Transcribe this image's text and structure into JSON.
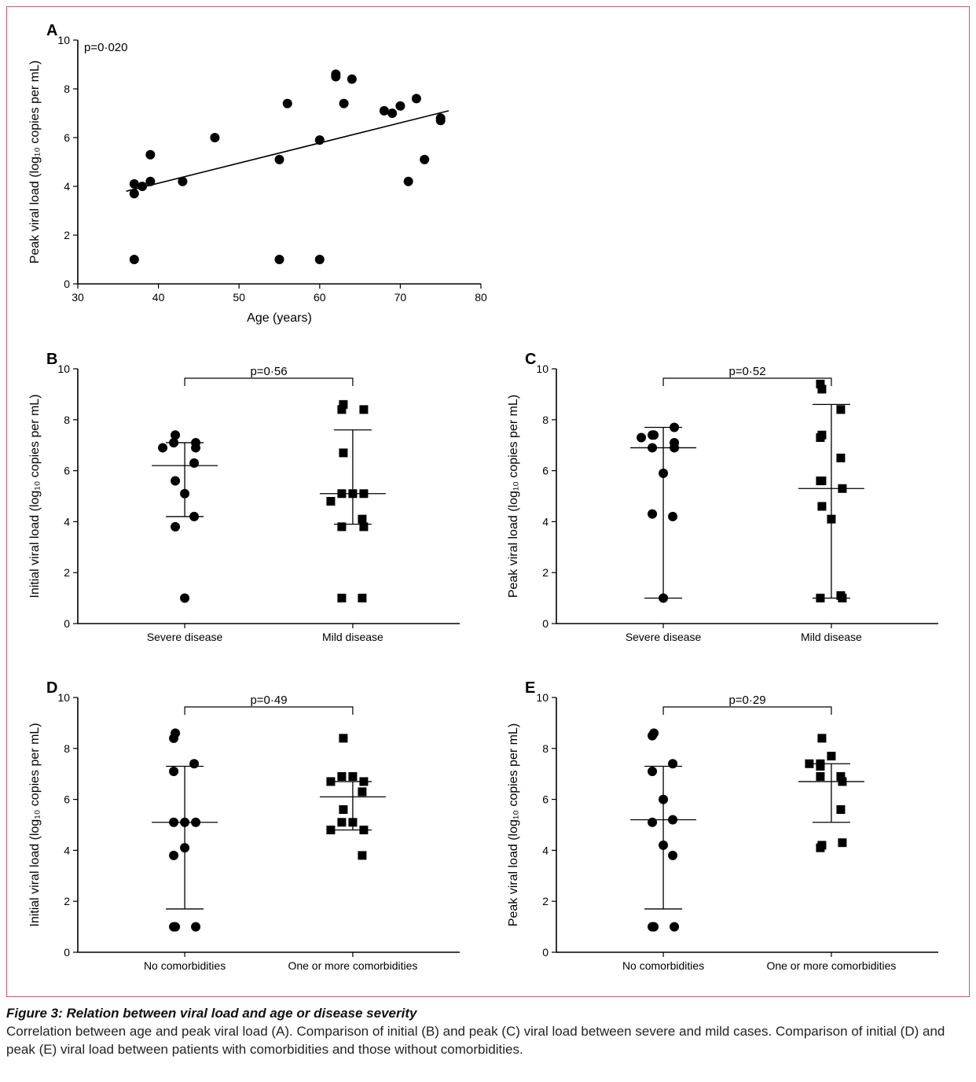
{
  "figure": {
    "caption_title": "Figure 3: Relation between viral load and age or disease severity",
    "caption_body": "Correlation between age and peak viral load (A). Comparison of initial (B) and peak (C) viral load between severe and mild cases. Comparison of initial (D) and peak (E) viral load between patients with comorbidities and those without comorbidities.",
    "border_color": "#d94f70",
    "background_color": "#ffffff",
    "marker_color": "#000000",
    "axis_color": "#000000",
    "label_fontsize": 16,
    "tick_fontsize": 14,
    "panel_letter_fontsize": 20,
    "marker_radius": 6,
    "square_size": 11
  },
  "panelA": {
    "letter": "A",
    "type": "scatter",
    "pvalue_label": "p=0·020",
    "xlabel": "Age (years)",
    "ylabel": "Peak viral load (log₁₀ copies per mL)",
    "xlim": [
      30,
      80
    ],
    "xtick_step": 10,
    "ylim": [
      0,
      10
    ],
    "ytick_step": 2,
    "points": [
      [
        37,
        1.0
      ],
      [
        37,
        4.1
      ],
      [
        37,
        3.7
      ],
      [
        38,
        4.0
      ],
      [
        39,
        4.2
      ],
      [
        39,
        5.3
      ],
      [
        43,
        4.2
      ],
      [
        47,
        6.0
      ],
      [
        55,
        5.1
      ],
      [
        55,
        1.0
      ],
      [
        56,
        7.4
      ],
      [
        60,
        1.0
      ],
      [
        60,
        5.9
      ],
      [
        62,
        8.6
      ],
      [
        62,
        8.5
      ],
      [
        63,
        7.4
      ],
      [
        64,
        8.4
      ],
      [
        68,
        7.1
      ],
      [
        69,
        7.0
      ],
      [
        70,
        7.3
      ],
      [
        71,
        4.2
      ],
      [
        72,
        7.6
      ],
      [
        73,
        5.1
      ],
      [
        75,
        6.7
      ],
      [
        75,
        6.8
      ]
    ],
    "fit_line": {
      "x0": 36,
      "y0": 3.8,
      "x1": 76,
      "y1": 7.1
    }
  },
  "panelB": {
    "letter": "B",
    "type": "strip",
    "pvalue_label": "p=0·56",
    "ylabel": "Initial viral load (log₁₀ copies per mL)",
    "ylim": [
      0,
      10
    ],
    "ytick_step": 2,
    "groups": [
      {
        "label": "Severe disease",
        "marker": "circle",
        "mean": 6.2,
        "err_lo": 4.2,
        "err_hi": 7.1,
        "points": [
          7.4,
          7.1,
          7.1,
          6.9,
          6.9,
          6.3,
          5.6,
          5.1,
          4.2,
          3.8,
          1.0
        ]
      },
      {
        "label": "Mild disease",
        "marker": "square",
        "mean": 5.1,
        "err_lo": 3.9,
        "err_hi": 7.6,
        "points": [
          8.6,
          8.4,
          8.4,
          6.7,
          5.1,
          5.1,
          5.1,
          4.8,
          4.1,
          3.8,
          3.8,
          1.0,
          1.0
        ]
      }
    ]
  },
  "panelC": {
    "letter": "C",
    "type": "strip",
    "pvalue_label": "p=0·52",
    "ylabel": "Peak viral load (log₁₀ copies per mL)",
    "ylim": [
      0,
      10
    ],
    "ytick_step": 2,
    "groups": [
      {
        "label": "Severe disease",
        "marker": "circle",
        "mean": 6.9,
        "err_lo": 1.0,
        "err_hi": 7.7,
        "points": [
          7.4,
          7.4,
          7.7,
          7.1,
          7.3,
          6.9,
          6.9,
          5.9,
          4.2,
          4.3,
          1.0
        ]
      },
      {
        "label": "Mild disease",
        "marker": "square",
        "mean": 5.3,
        "err_lo": 1.0,
        "err_hi": 8.6,
        "points": [
          9.2,
          9.4,
          8.4,
          7.4,
          7.3,
          6.5,
          5.6,
          5.6,
          5.3,
          4.6,
          4.1,
          1.1,
          1.0,
          1.0
        ]
      }
    ]
  },
  "panelD": {
    "letter": "D",
    "type": "strip",
    "pvalue_label": "p=0·49",
    "ylabel": "Initial viral load (log₁₀ copies per mL)",
    "ylim": [
      0,
      10
    ],
    "ytick_step": 2,
    "groups": [
      {
        "label": "No comorbidities",
        "marker": "circle",
        "mean": 5.1,
        "err_lo": 1.7,
        "err_hi": 7.3,
        "points": [
          8.6,
          8.4,
          7.4,
          7.1,
          5.1,
          5.1,
          5.1,
          4.1,
          3.8,
          1.0,
          1.0,
          1.0
        ]
      },
      {
        "label": "One or more comorbidities",
        "marker": "square",
        "mean": 6.1,
        "err_lo": 4.8,
        "err_hi": 6.7,
        "points": [
          8.4,
          6.9,
          6.9,
          6.7,
          6.7,
          6.3,
          5.6,
          5.1,
          5.1,
          4.8,
          4.8,
          3.8
        ]
      }
    ]
  },
  "panelE": {
    "letter": "E",
    "type": "strip",
    "pvalue_label": "p=0·29",
    "ylabel": "Peak viral load (log₁₀ copies per mL)",
    "ylim": [
      0,
      10
    ],
    "ytick_step": 2,
    "groups": [
      {
        "label": "No comorbidities",
        "marker": "circle",
        "mean": 5.2,
        "err_lo": 1.7,
        "err_hi": 7.3,
        "points": [
          8.6,
          8.5,
          7.4,
          7.1,
          6.0,
          5.2,
          5.1,
          4.2,
          3.8,
          1.0,
          1.0,
          1.0
        ]
      },
      {
        "label": "One or more comorbidities",
        "marker": "square",
        "mean": 6.7,
        "err_lo": 5.1,
        "err_hi": 7.4,
        "points": [
          8.4,
          7.7,
          7.4,
          7.3,
          7.4,
          6.9,
          6.9,
          6.7,
          5.6,
          4.2,
          4.1,
          4.3
        ]
      }
    ]
  }
}
